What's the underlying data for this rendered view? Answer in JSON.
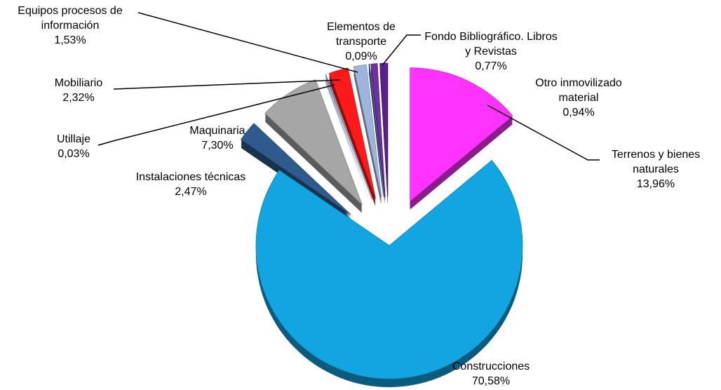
{
  "chart_data": {
    "type": "pie",
    "categories": [
      "Terrenos y bienes naturales",
      "Construcciones",
      "Instalaciones técnicas",
      "Maquinaria",
      "Utillaje",
      "Mobiliario",
      "Equipos procesos de información",
      "Elementos de transporte",
      "Fondo Bibliográfico. Libros y Revistas",
      "Otro inmovilizado material"
    ],
    "values": [
      13.96,
      70.58,
      2.47,
      7.3,
      0.03,
      2.32,
      1.53,
      0.09,
      0.77,
      0.94
    ],
    "value_labels": [
      "13,96%",
      "70,58%",
      "2,47%",
      "7,30%",
      "0,03%",
      "2,32%",
      "1,53%",
      "0,09%",
      "0,77%",
      "0,94%"
    ],
    "colors": [
      "#ff33ff",
      "#12a5e2",
      "#2e5a8e",
      "#a6a6a6",
      "#4f81bd",
      "#ff1a1a",
      "#9fb4da",
      "#3a5fa8",
      "#7030a0",
      "#5b1f8a"
    ]
  }
}
